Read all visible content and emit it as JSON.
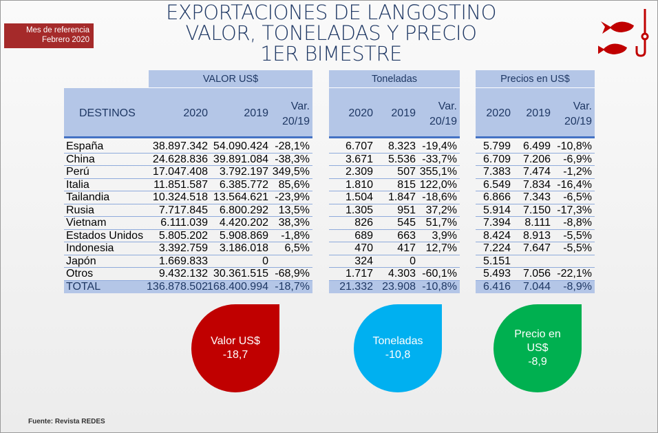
{
  "title": [
    "EXPORTACIONES DE LANGOSTINO",
    "VALOR, TONELADAS Y PRECIO",
    "1ER BIMESTRE"
  ],
  "badge": {
    "line1": "Mes de referencia",
    "line2": "Febrero 2020"
  },
  "colors": {
    "header": "#b4c6e7",
    "red": "#c00000",
    "cyan": "#00b0f0",
    "green": "#00b050"
  },
  "groups": {
    "valor": "VALOR US$",
    "toneladas": "Toneladas",
    "precios": "Precios en US$"
  },
  "columns": {
    "destinos": "DESTINOS",
    "y2020": "2020",
    "y2019": "2019",
    "var1": "Var.",
    "var2": "20/19"
  },
  "rows": [
    [
      "España",
      "38.897.342",
      "54.090.424",
      "-28,1%",
      "6.707",
      "8.323",
      "-19,4%",
      "5.799",
      "6.499",
      "-10,8%"
    ],
    [
      "China",
      "24.628.836",
      "39.891.084",
      "-38,3%",
      "3.671",
      "5.536",
      "-33,7%",
      "6.709",
      "7.206",
      "-6,9%"
    ],
    [
      "Perú",
      "17.047.408",
      "3.792.197",
      "349,5%",
      "2.309",
      "507",
      "355,1%",
      "7.383",
      "7.474",
      "-1,2%"
    ],
    [
      "Italia",
      "11.851.587",
      "6.385.772",
      "85,6%",
      "1.810",
      "815",
      "122,0%",
      "6.549",
      "7.834",
      "-16,4%"
    ],
    [
      "Tailandia",
      "10.324.518",
      "13.564.621",
      "-23,9%",
      "1.504",
      "1.847",
      "-18,6%",
      "6.866",
      "7.343",
      "-6,5%"
    ],
    [
      "Rusia",
      "7.717.845",
      "6.800.292",
      "13,5%",
      "1.305",
      "951",
      "37,2%",
      "5.914",
      "7.150",
      "-17,3%"
    ],
    [
      "Vietnam",
      "6.111.039",
      "4.420.202",
      "38,3%",
      "826",
      "545",
      "51,7%",
      "7.394",
      "8.111",
      "-8,8%"
    ],
    [
      "Estados Unidos",
      "5.805.202",
      "5.908.869",
      "-1,8%",
      "689",
      "663",
      "3,9%",
      "8.424",
      "8.913",
      "-5,5%"
    ],
    [
      "Indonesia",
      "3.392.759",
      "3.186.018",
      "6,5%",
      "470",
      "417",
      "12,7%",
      "7.224",
      "7.647",
      "-5,5%"
    ],
    [
      "Japón",
      "1.669.833",
      "0",
      "",
      "324",
      "0",
      "",
      "5.151",
      "",
      ""
    ],
    [
      "Otros",
      "9.432.132",
      "30.361.515",
      "-68,9%",
      "1.717",
      "4.303",
      "-60,1%",
      "5.493",
      "7.056",
      "-22,1%"
    ],
    [
      "TOTAL",
      "136.878.502",
      "168.400.994",
      "-18,7%",
      "21.332",
      "23.908",
      "-10,8%",
      "6.416",
      "7.044",
      "-8,9%"
    ]
  ],
  "drops": [
    {
      "label": "Valor US$",
      "value": "-18,7"
    },
    {
      "label": "Toneladas",
      "value": "-10,8"
    },
    {
      "label1": "Precio en",
      "label2": "US$",
      "value": "-8,9"
    }
  ],
  "source": "Fuente: Revista REDES"
}
